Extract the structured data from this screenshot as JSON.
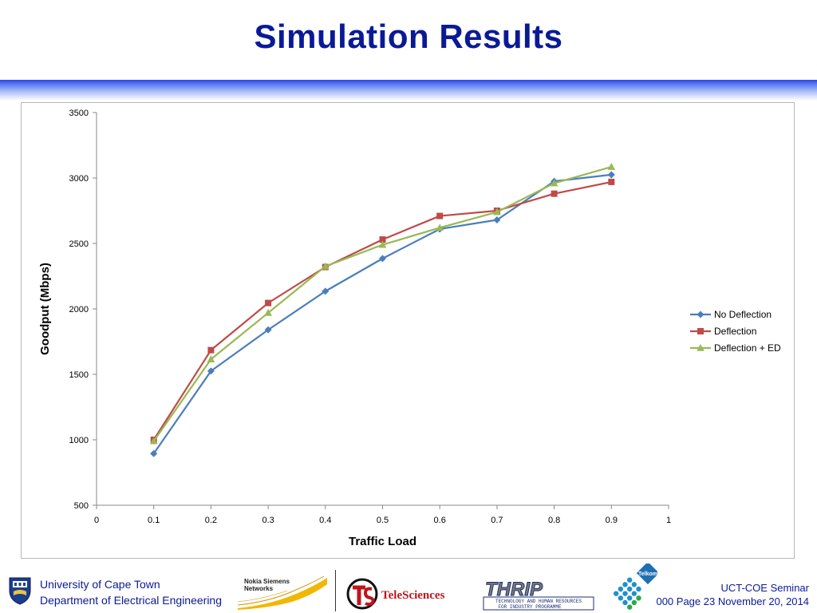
{
  "slide": {
    "title": "Simulation Results"
  },
  "chart_data": {
    "type": "line",
    "title": "",
    "xlabel": "Traffic Load",
    "ylabel": "Goodput (Mbps)",
    "xlim": [
      0,
      1
    ],
    "ylim": [
      500,
      3500
    ],
    "x_ticks": [
      "0",
      "0.1",
      "0.2",
      "0.3",
      "0.4",
      "0.5",
      "0.6",
      "0.7",
      "0.8",
      "0.9",
      "1"
    ],
    "y_ticks": [
      "500",
      "1000",
      "1500",
      "2000",
      "2500",
      "3000",
      "3500"
    ],
    "x_tick_values": [
      0,
      0.1,
      0.2,
      0.3,
      0.4,
      0.5,
      0.6,
      0.7,
      0.8,
      0.9,
      1
    ],
    "y_tick_values": [
      500,
      1000,
      1500,
      2000,
      2500,
      3000,
      3500
    ],
    "grid": false,
    "legend_position": "right",
    "x": [
      0.1,
      0.2,
      0.3,
      0.4,
      0.5,
      0.6,
      0.7,
      0.8,
      0.9
    ],
    "series": [
      {
        "name": "No Deflection",
        "color": "#4a7ebb",
        "marker": "diamond",
        "values": [
          895,
          1525,
          1840,
          2135,
          2385,
          2610,
          2680,
          2975,
          3025
        ]
      },
      {
        "name": "Deflection",
        "color": "#be4b48",
        "marker": "square",
        "values": [
          1000,
          1685,
          2045,
          2320,
          2530,
          2710,
          2750,
          2880,
          2970
        ]
      },
      {
        "name": "Deflection + ED",
        "color": "#98b954",
        "marker": "triangle",
        "values": [
          990,
          1615,
          1970,
          2325,
          2490,
          2620,
          2740,
          2960,
          3085
        ]
      }
    ]
  },
  "footer": {
    "university_line1": "University of Cape Town",
    "university_line2": "Department of Electrical Engineering",
    "nsn_line1": "Nokia Siemens",
    "nsn_line2": "Networks",
    "telesciences": "TeleSciences",
    "thrip": "THRIP",
    "thrip_sub1": "TECHNOLOGY AND HUMAN RESOURCES",
    "thrip_sub2": "FOR INDUSTRY PROGRAMME",
    "telkom": "Telkom",
    "seminar_line1": "UCT-COE Seminar",
    "seminar_line2": "000 Page 23 November 20, 2014",
    "uct_crest_icon": "shield-crest-icon",
    "nsn_wave_icon": "wave-swoosh-icon",
    "ts_globe_icon": "globe-ts-icon",
    "telkom_dots_icon": "dot-grid-icon"
  }
}
